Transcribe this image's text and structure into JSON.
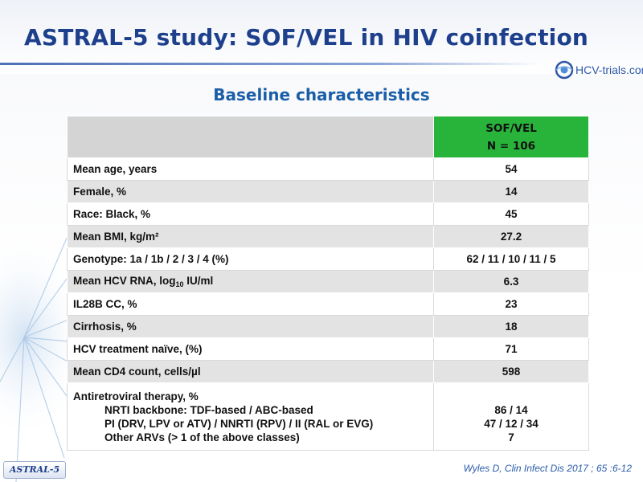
{
  "title": "ASTRAL-5 study: SOF/VEL in HIV coinfection",
  "logo": {
    "text": "HCV-trials.com"
  },
  "subtitle": "Baseline characteristics",
  "table": {
    "header": {
      "line1": "SOF/VEL",
      "line2": "N = 106"
    },
    "rows": [
      {
        "label": "Mean age, years",
        "value": "54"
      },
      {
        "label": "Female, %",
        "value": "14"
      },
      {
        "label": "Race: Black, %",
        "value": "45"
      },
      {
        "label": "Mean BMI, kg/m²",
        "value": "27.2"
      },
      {
        "label": "Genotype: 1a / 1b / 2 / 3 / 4 (%)",
        "value": "62 / 11 / 10 / 11 / 5"
      },
      {
        "label_pre": "Mean HCV RNA, log",
        "label_sub": "10",
        "label_post": " IU/ml",
        "value": "6.3"
      },
      {
        "label": "IL28B CC, %",
        "value": "23"
      },
      {
        "label": "Cirrhosis, %",
        "value": "18"
      },
      {
        "label": "HCV treatment naïve, (%)",
        "value": "71"
      },
      {
        "label": "Mean CD4 count, cells/µl",
        "value": "598"
      }
    ],
    "art": {
      "label": "Antiretroviral therapy, %",
      "items": [
        {
          "label": "NRTI backbone: TDF-based / ABC-based",
          "value": "86 / 14"
        },
        {
          "label": "PI (DRV, LPV or ATV) / NNRTI (RPV) / II (RAL or EVG)",
          "value": "47 / 12 / 34"
        },
        {
          "label": "Other ARVs (> 1 of the above classes)",
          "value": "7"
        }
      ]
    }
  },
  "badge": "ASTRAL-5",
  "reference": "Wyles D, Clin Infect Dis 2017 ; 65 :6-12",
  "colors": {
    "title": "#1d3f8c",
    "subtitle": "#1a5ea8",
    "header_green": "#28b33a",
    "row_shade": "#e3e3e3"
  }
}
